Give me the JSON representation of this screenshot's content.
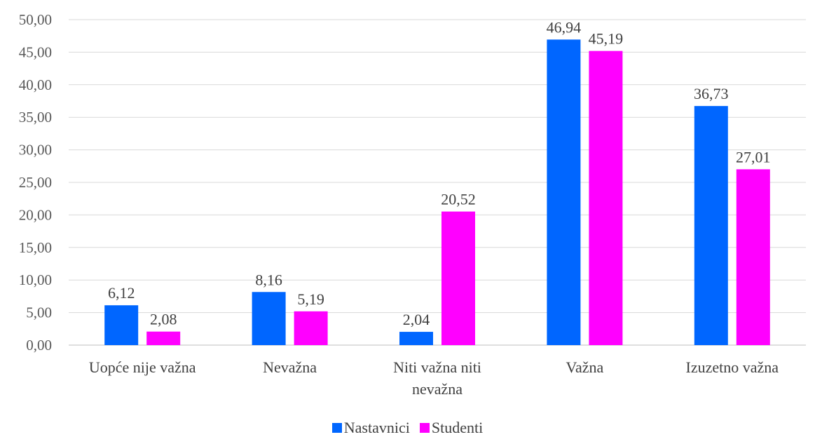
{
  "chart_data": {
    "type": "bar",
    "title": "",
    "xlabel": "",
    "ylabel": "",
    "categories": [
      [
        "Uopće nije važna"
      ],
      [
        "Nevažna"
      ],
      [
        "Niti važna niti",
        "nevažna"
      ],
      [
        "Važna"
      ],
      [
        "Izuzetno važna"
      ]
    ],
    "series": [
      {
        "name": "Nastavnici",
        "color": "#0066FF",
        "values": [
          6.12,
          8.16,
          2.04,
          46.94,
          36.73
        ],
        "labels": [
          "6,12",
          "8,16",
          "2,04",
          "46,94",
          "36,73"
        ]
      },
      {
        "name": "Studenti",
        "color": "#FF00FF",
        "values": [
          2.08,
          5.19,
          20.52,
          45.19,
          27.01
        ],
        "labels": [
          "2,08",
          "5,19",
          "20,52",
          "45,19",
          "27,01"
        ]
      }
    ],
    "ylim": [
      0,
      50
    ],
    "yticks": [
      {
        "value": 0,
        "label": "0,00"
      },
      {
        "value": 5,
        "label": "5,00"
      },
      {
        "value": 10,
        "label": "10,00"
      },
      {
        "value": 15,
        "label": "15,00"
      },
      {
        "value": 20,
        "label": "20,00"
      },
      {
        "value": 25,
        "label": "25,00"
      },
      {
        "value": 30,
        "label": "30,00"
      },
      {
        "value": 35,
        "label": "35,00"
      },
      {
        "value": 40,
        "label": "40,00"
      },
      {
        "value": 45,
        "label": "45,00"
      },
      {
        "value": 50,
        "label": "50,00"
      }
    ],
    "grid": true,
    "legend_position": "bottom"
  },
  "legend": {
    "items": [
      {
        "label": "Nastavnici",
        "color": "#0066FF"
      },
      {
        "label": "Studenti",
        "color": "#FF00FF"
      }
    ]
  }
}
